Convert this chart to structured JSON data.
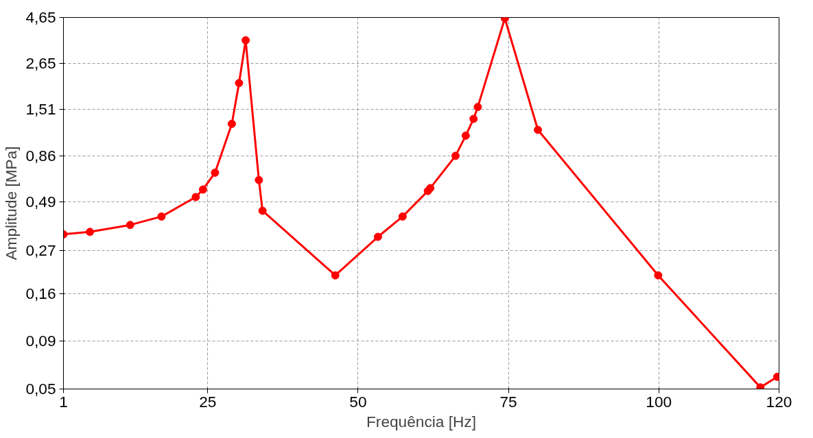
{
  "chart_data": {
    "type": "line",
    "xlabel": "Frequência [Hz]",
    "ylabel": "Amplitude [MPa]",
    "x": [
      1,
      5.4,
      12.1,
      17.3,
      23.0,
      24.2,
      26.2,
      29.0,
      30.2,
      31.3,
      33.5,
      34.1,
      46.2,
      53.3,
      57.4,
      61.6,
      62.0,
      66.2,
      67.9,
      69.2,
      69.9,
      74.4,
      79.9,
      99.9,
      116.9,
      119.7
    ],
    "series": [
      {
        "color": "#ff0000",
        "values": [
          0.33,
          0.34,
          0.37,
          0.41,
          0.52,
          0.57,
          0.7,
          1.27,
          2.09,
          3.52,
          0.64,
          0.44,
          0.2,
          0.32,
          0.41,
          0.56,
          0.58,
          0.86,
          1.1,
          1.35,
          1.56,
          4.6,
          1.18,
          0.2,
          0.051,
          0.058
        ]
      }
    ],
    "xlim": [
      1,
      120
    ],
    "xticks": [
      1,
      25,
      50,
      75,
      100,
      120
    ],
    "ylim": [
      0.05,
      4.65
    ],
    "yticks": [
      {
        "value": 0.05,
        "label": "0,05"
      },
      {
        "value": 0.09,
        "label": "0,09"
      },
      {
        "value": 0.16,
        "label": "0,16"
      },
      {
        "value": 0.27,
        "label": "0,27"
      },
      {
        "value": 0.49,
        "label": "0,49"
      },
      {
        "value": 0.86,
        "label": "0,86"
      },
      {
        "value": 1.51,
        "label": "1,51"
      },
      {
        "value": 2.65,
        "label": "2,65"
      },
      {
        "value": 4.65,
        "label": "4,65"
      }
    ],
    "log": "y",
    "grid": true,
    "marker": "circle",
    "line_style": "solid"
  }
}
